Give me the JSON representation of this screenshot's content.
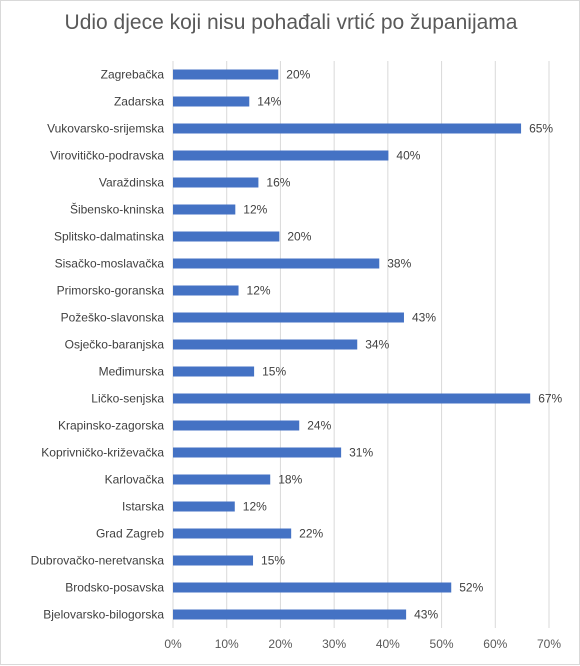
{
  "chart_data": {
    "type": "bar",
    "orientation": "horizontal",
    "title": "Udio djece koji nisu pohađali vrtić po županijama",
    "xlabel": "",
    "ylabel": "",
    "categories": [
      "Zagrebačka",
      "Zadarska",
      "Vukovarsko-srijemska",
      "Virovitičko-podravska",
      "Varaždinska",
      "Šibensko-kninska",
      "Splitsko-dalmatinska",
      "Sisačko-moslavačka",
      "Primorsko-goranska",
      "Požeško-slavonska",
      "Osječko-baranjska",
      "Međimurska",
      "Ličko-senjska",
      "Krapinsko-zagorska",
      "Koprivničko-križevačka",
      "Karlovačka",
      "Istarska",
      "Grad Zagreb",
      "Dubrovačko-neretvanska",
      "Brodsko-posavska",
      "Bjelovarsko-bilogorska"
    ],
    "values": [
      19.6,
      14.2,
      64.8,
      40.1,
      15.9,
      11.6,
      19.8,
      38.4,
      12.2,
      43.0,
      34.3,
      15.1,
      66.5,
      23.5,
      31.3,
      18.1,
      11.5,
      22.0,
      14.9,
      51.8,
      43.4
    ],
    "value_labels": [
      "20%",
      "14%",
      "65%",
      "40%",
      "16%",
      "12%",
      "20%",
      "38%",
      "12%",
      "43%",
      "34%",
      "15%",
      "67%",
      "24%",
      "31%",
      "18%",
      "12%",
      "22%",
      "15%",
      "52%",
      "43%"
    ],
    "xlim": [
      0,
      70
    ],
    "x_ticks": [
      0,
      10,
      20,
      30,
      40,
      50,
      60,
      70
    ],
    "x_tick_labels": [
      "0%",
      "10%",
      "20%",
      "30%",
      "40%",
      "50%",
      "60%",
      "70%"
    ],
    "grid": true,
    "legend": "none",
    "colors": {
      "bar": "#4472C4",
      "grid": "#d9d9d9",
      "text": "#404040"
    }
  }
}
